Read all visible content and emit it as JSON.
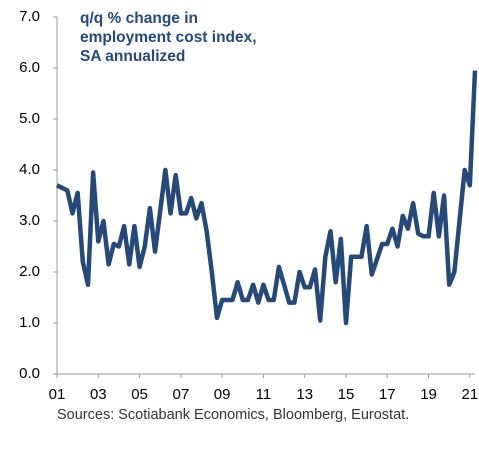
{
  "chart_data": {
    "type": "line",
    "title": "q/q % change in employment cost index, SA annualized",
    "source": "Sources: Scotiabank Economics, Bloomberg, Eurostat.",
    "x": [
      1,
      1.25,
      1.5,
      1.75,
      2,
      2.25,
      2.5,
      2.75,
      3,
      3.25,
      3.5,
      3.75,
      4,
      4.25,
      4.5,
      4.75,
      5,
      5.25,
      5.5,
      5.75,
      6,
      6.25,
      6.5,
      6.75,
      7,
      7.25,
      7.5,
      7.75,
      8,
      8.25,
      8.5,
      8.75,
      9,
      9.25,
      9.5,
      9.75,
      10,
      10.25,
      10.5,
      10.75,
      11,
      11.25,
      11.5,
      11.75,
      12,
      12.25,
      12.5,
      12.75,
      13,
      13.25,
      13.5,
      13.75,
      14,
      14.25,
      14.5,
      14.75,
      15,
      15.25,
      15.5,
      15.75,
      16,
      16.25,
      16.5,
      16.75,
      17,
      17.25,
      17.5,
      17.75,
      18,
      18.25,
      18.5,
      18.75,
      19,
      19.25,
      19.5,
      19.75,
      20,
      20.25,
      20.5,
      20.75,
      21,
      21.25
    ],
    "series": [
      {
        "color": "#24497a",
        "values": [
          3.7,
          3.65,
          3.6,
          3.15,
          3.55,
          2.2,
          1.75,
          3.95,
          2.6,
          3.0,
          2.15,
          2.55,
          2.5,
          2.9,
          2.15,
          2.9,
          2.1,
          2.5,
          3.25,
          2.4,
          3.2,
          4.0,
          3.15,
          3.9,
          3.15,
          3.15,
          3.45,
          3.05,
          3.35,
          2.8,
          2.0,
          1.1,
          1.45,
          1.45,
          1.45,
          1.8,
          1.45,
          1.45,
          1.75,
          1.4,
          1.75,
          1.45,
          1.45,
          2.1,
          1.75,
          1.4,
          1.4,
          2.0,
          1.7,
          1.7,
          2.05,
          1.05,
          2.3,
          2.8,
          1.8,
          2.65,
          1.0,
          2.3,
          2.3,
          2.3,
          2.9,
          1.95,
          2.25,
          2.55,
          2.55,
          2.85,
          2.5,
          3.1,
          2.85,
          3.35,
          2.75,
          2.7,
          2.7,
          3.55,
          2.7,
          3.5,
          1.75,
          2.0,
          3.0,
          4.0,
          3.7,
          5.95
        ]
      }
    ],
    "xlim": [
      1,
      21.25
    ],
    "xticks": [
      {
        "value": 1,
        "label": "01"
      },
      {
        "value": 3,
        "label": "03"
      },
      {
        "value": 5,
        "label": "05"
      },
      {
        "value": 7,
        "label": "07"
      },
      {
        "value": 9,
        "label": "09"
      },
      11,
      13,
      15,
      17,
      19,
      21
    ],
    "ylim": [
      0,
      7
    ],
    "yticks": [
      {
        "value": 0,
        "label": "0.0"
      },
      {
        "value": 1,
        "label": "1.0"
      },
      {
        "value": 2,
        "label": "2.0"
      },
      {
        "value": 3,
        "label": "3.0"
      },
      {
        "value": 4,
        "label": "4.0"
      },
      {
        "value": 5,
        "label": "5.0"
      },
      {
        "value": 6,
        "label": "6.0"
      },
      {
        "value": 7,
        "label": "7.0"
      }
    ],
    "grid": false
  }
}
